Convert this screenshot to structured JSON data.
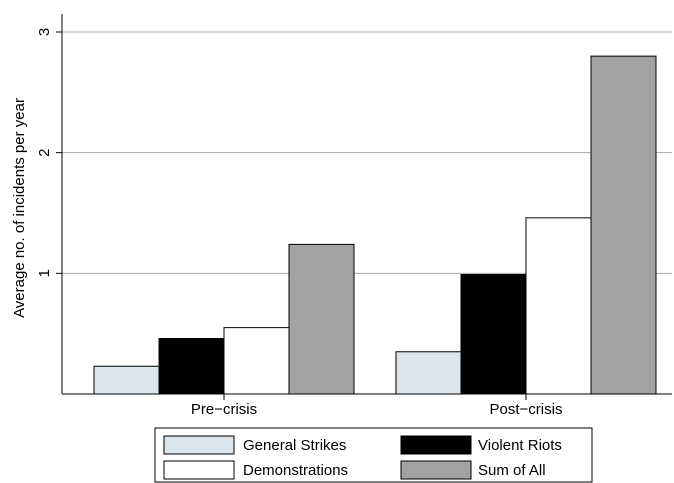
{
  "chart_data": {
    "type": "bar",
    "title": "",
    "xlabel": "",
    "ylabel": "Average no. of incidents per year",
    "categories": [
      "Pre−crisis",
      "Post−crisis"
    ],
    "series": [
      {
        "name": "General Strikes",
        "values": [
          0.23,
          0.35
        ],
        "color": "#d9e6ee"
      },
      {
        "name": "Violent Riots",
        "values": [
          0.46,
          0.99
        ],
        "color": "#000000"
      },
      {
        "name": "Demonstrations",
        "values": [
          0.55,
          1.46
        ],
        "color": "#ffffff"
      },
      {
        "name": "Sum of All",
        "values": [
          1.24,
          2.8
        ],
        "color": "#a3a3a3"
      }
    ],
    "ylim": [
      0,
      3
    ],
    "yticks": [
      1,
      2,
      3
    ],
    "grid": true,
    "legend": {
      "position": "bottom",
      "columns": 2,
      "order": [
        "General Strikes",
        "Violent Riots",
        "Demonstrations",
        "Sum of All"
      ]
    }
  }
}
